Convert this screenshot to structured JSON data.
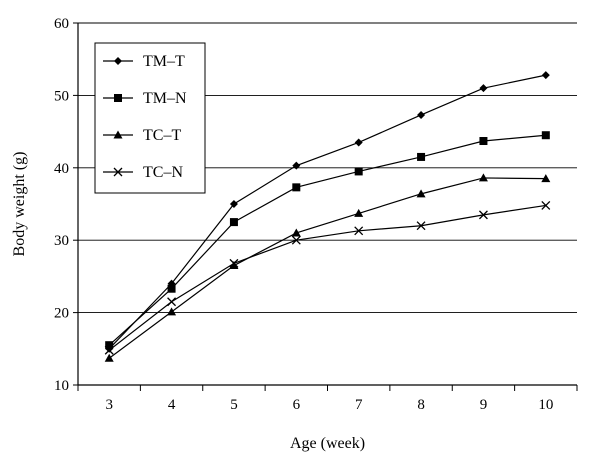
{
  "chart_data": {
    "type": "line",
    "title": "",
    "xlabel": "Age (week)",
    "ylabel": "Body weight (g)",
    "x": [
      3,
      4,
      5,
      6,
      7,
      8,
      9,
      10
    ],
    "x_tick_labels": [
      "3",
      "4",
      "5",
      "6",
      "7",
      "8",
      "9",
      "10"
    ],
    "ylim": [
      10,
      60
    ],
    "y_ticks": [
      10,
      20,
      30,
      40,
      50,
      60
    ],
    "y_tick_labels": [
      "10",
      "20",
      "30",
      "40",
      "50",
      "60"
    ],
    "grid": "horizontal",
    "legend_position": "top-left",
    "series": [
      {
        "name": "TM–T",
        "marker": "diamond",
        "values": [
          15.0,
          24.0,
          35.0,
          40.3,
          43.5,
          47.3,
          51.0,
          52.8
        ]
      },
      {
        "name": "TM–N",
        "marker": "square",
        "values": [
          15.5,
          23.3,
          32.5,
          37.3,
          39.5,
          41.5,
          43.7,
          44.5
        ]
      },
      {
        "name": "TC–T",
        "marker": "triangle",
        "values": [
          13.7,
          20.1,
          26.5,
          31.0,
          33.7,
          36.4,
          38.6,
          38.5
        ]
      },
      {
        "name": "TC–N",
        "marker": "cross",
        "values": [
          14.8,
          21.5,
          26.8,
          30.0,
          31.3,
          32.0,
          33.5,
          34.8
        ]
      }
    ],
    "colors": {
      "line": "#000000",
      "grid": "#000000",
      "background": "#ffffff"
    }
  }
}
